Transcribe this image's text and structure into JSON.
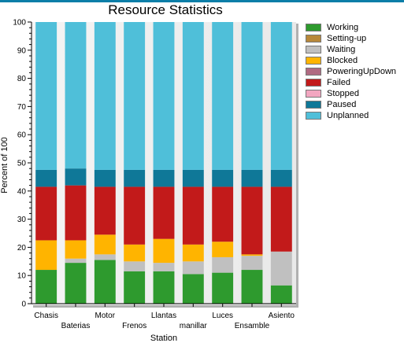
{
  "chart_data": {
    "type": "bar",
    "stacked": true,
    "title": "Resource Statistics",
    "xlabel": "Station",
    "ylabel": "Percent of 100",
    "ylim": [
      0,
      100
    ],
    "yticks": [
      0,
      10,
      20,
      30,
      40,
      50,
      60,
      70,
      80,
      90,
      100
    ],
    "legend_position": "right",
    "categories": [
      "Chasis",
      "Baterias",
      "Motor",
      "Frenos",
      "Llantas",
      "manillar",
      "Luces",
      "Ensamble",
      "Asiento"
    ],
    "series": [
      {
        "name": "Working",
        "color": "#2e9a2e",
        "values": [
          12,
          14.5,
          15.5,
          11.5,
          11.5,
          10.5,
          11,
          12,
          6.5
        ]
      },
      {
        "name": "Setting-up",
        "color": "#b8883a",
        "values": [
          0,
          0,
          0,
          0,
          0,
          0,
          0,
          0,
          0
        ]
      },
      {
        "name": "Waiting",
        "color": "#c0c0c0",
        "values": [
          0,
          1.5,
          2,
          3.5,
          3,
          4.5,
          5.5,
          5,
          12
        ]
      },
      {
        "name": "Blocked",
        "color": "#ffb400",
        "values": [
          10.5,
          6.5,
          7,
          6,
          8.5,
          6,
          5.5,
          0.5,
          0
        ]
      },
      {
        "name": "PoweringUpDown",
        "color": "#b06a82",
        "values": [
          0,
          0,
          0,
          0,
          0,
          0,
          0,
          0,
          0
        ]
      },
      {
        "name": "Failed",
        "color": "#c21a1a",
        "values": [
          19,
          19.5,
          17,
          20.5,
          18.5,
          20.5,
          19.5,
          24,
          23
        ]
      },
      {
        "name": "Stopped",
        "color": "#f2a6c0",
        "values": [
          0,
          0,
          0,
          0,
          0,
          0,
          0,
          0,
          0
        ]
      },
      {
        "name": "Paused",
        "color": "#0f7898",
        "values": [
          6,
          6,
          6,
          6,
          6,
          6,
          6,
          6,
          6
        ]
      },
      {
        "name": "Unplanned",
        "color": "#4fbfd9",
        "values": [
          52.5,
          52,
          52.5,
          52.5,
          52.5,
          52.5,
          52.5,
          52.5,
          52.5
        ]
      }
    ]
  }
}
